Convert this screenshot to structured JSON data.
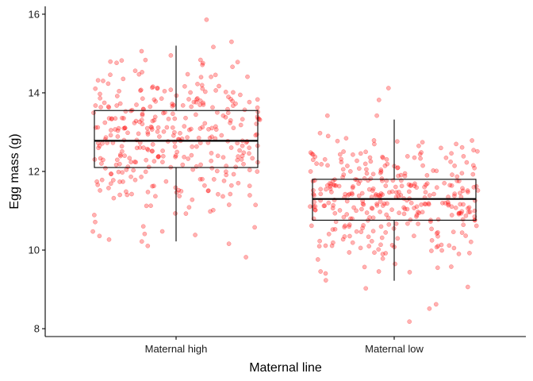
{
  "chart_data": {
    "type": "boxplot",
    "xlabel": "Maternal line",
    "ylabel": "Egg mass (g)",
    "ylim": [
      7.8,
      16.2
    ],
    "yticks": [
      8,
      10,
      12,
      14,
      16
    ],
    "categories": [
      "Maternal high",
      "Maternal low"
    ],
    "grid": false,
    "boxes": [
      {
        "category": "Maternal high",
        "whisker_low": 10.22,
        "q1": 12.1,
        "median": 12.78,
        "q3": 13.55,
        "whisker_high": 15.2
      },
      {
        "category": "Maternal low",
        "whisker_low": 9.22,
        "q1": 10.76,
        "median": 11.3,
        "q3": 11.8,
        "whisker_high": 13.32
      }
    ],
    "points": {
      "color": "#ff0000",
      "opacity": 0.3,
      "n_per_group_approx": 350,
      "notable": [
        {
          "category": "Maternal high",
          "y": 15.86
        },
        {
          "category": "Maternal high",
          "y": 10.22
        },
        {
          "category": "Maternal high",
          "y": 10.41
        },
        {
          "category": "Maternal low",
          "y": 14.12
        },
        {
          "category": "Maternal low",
          "y": 13.82
        },
        {
          "category": "Maternal low",
          "y": 8.51
        },
        {
          "category": "Maternal low",
          "y": 8.62
        },
        {
          "category": "Maternal low",
          "y": 8.18
        }
      ]
    }
  }
}
